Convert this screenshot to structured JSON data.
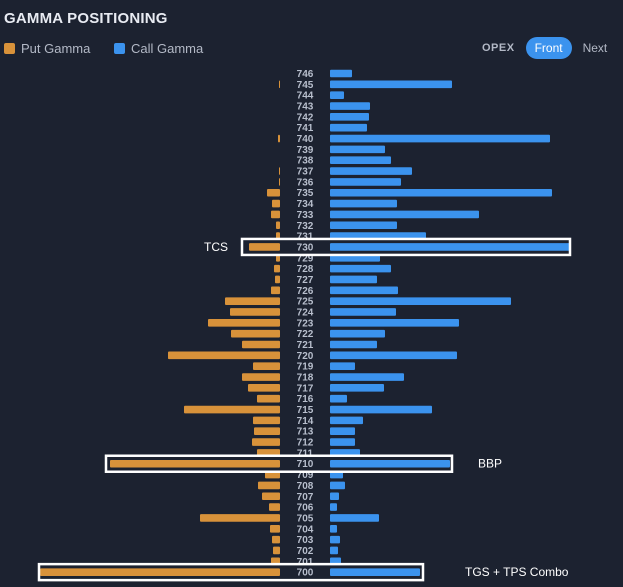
{
  "chart_data": {
    "type": "bar",
    "title": "GAMMA POSITIONING",
    "orientation": "horizontal-diverging",
    "legend": "top-left",
    "series": [
      {
        "name": "Put Gamma",
        "color": "#d8923a"
      },
      {
        "name": "Call Gamma",
        "color": "#3b93ee"
      }
    ],
    "strikes": [
      746,
      745,
      744,
      743,
      742,
      741,
      740,
      739,
      738,
      737,
      736,
      735,
      734,
      733,
      732,
      731,
      730,
      729,
      728,
      727,
      726,
      725,
      724,
      723,
      722,
      721,
      720,
      719,
      718,
      717,
      716,
      715,
      714,
      713,
      712,
      711,
      710,
      709,
      708,
      707,
      706,
      705,
      704,
      703,
      702,
      701,
      700
    ],
    "put_values": [
      0,
      1,
      0,
      0,
      0,
      0,
      2,
      0,
      0,
      1,
      1,
      13,
      8,
      9,
      4,
      4,
      31,
      4,
      6,
      5,
      9,
      55,
      50,
      72,
      49,
      38,
      112,
      27,
      38,
      32,
      23,
      96,
      27,
      26,
      28,
      23,
      170,
      15,
      22,
      18,
      11,
      80,
      10,
      8,
      7,
      9,
      240
    ],
    "call_values": [
      22,
      122,
      14,
      40,
      39,
      37,
      220,
      55,
      61,
      82,
      71,
      222,
      67,
      149,
      67,
      96,
      240,
      50,
      61,
      47,
      68,
      181,
      66,
      129,
      55,
      47,
      127,
      25,
      74,
      54,
      17,
      102,
      33,
      25,
      25,
      30,
      120,
      13,
      15,
      9,
      7,
      49,
      7,
      10,
      8,
      11,
      90
    ],
    "annotations": [
      {
        "label": "TCS",
        "strike": 730
      },
      {
        "label": "BBP",
        "strike": 710
      },
      {
        "label": "TGS + TPS Combo",
        "strike": 700
      }
    ]
  },
  "tabs": {
    "opex": "OPEX",
    "front": "Front",
    "next": "Next",
    "active": "front"
  }
}
